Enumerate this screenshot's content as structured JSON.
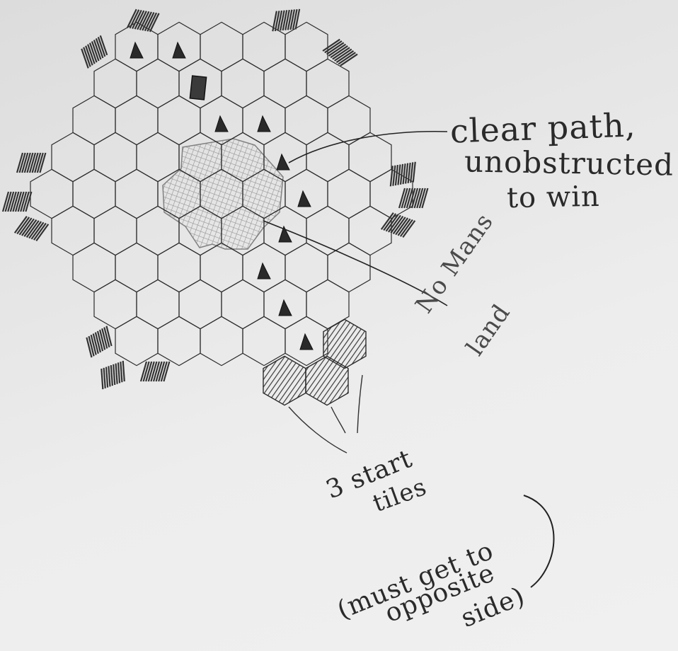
{
  "annotations": {
    "clear_path": {
      "line1": "clear path,",
      "line2": "unobstructed",
      "line3": "to win"
    },
    "no_mans_land": {
      "line1": "No Mans",
      "line2": "land"
    },
    "start_tiles": {
      "line1": "3 start",
      "line2": "tiles"
    },
    "must_reach": {
      "line1": "(must get to",
      "line2": "opposite",
      "line3": "side)"
    }
  },
  "colors": {
    "pencil": "#2b2b2b",
    "shading": "#555555",
    "paper": "#e9e9e9"
  },
  "icons": [
    "mountain-icon",
    "tower-icon"
  ]
}
